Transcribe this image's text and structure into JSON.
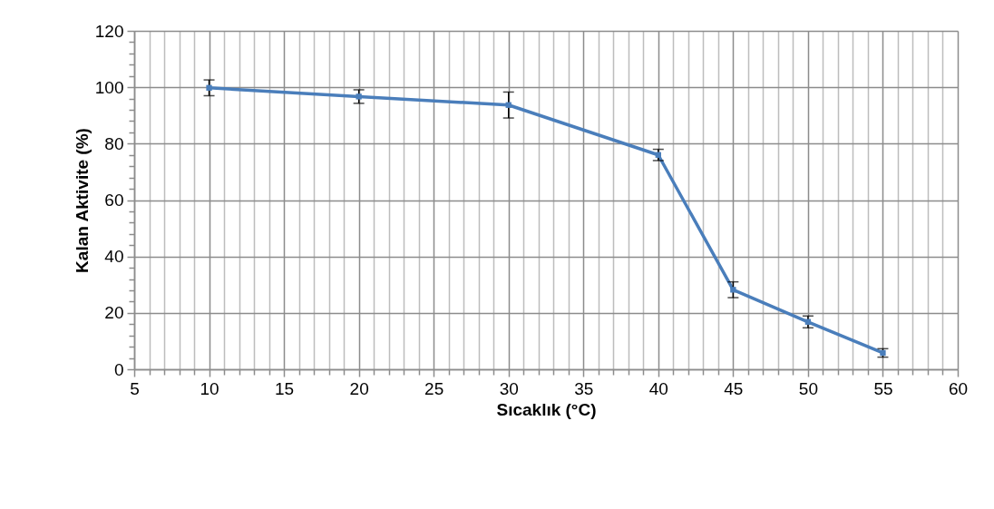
{
  "chart_data": {
    "type": "line",
    "xlabel": "Sıcaklık (°C)",
    "ylabel": "Kalan Aktivite (%)",
    "x": [
      10,
      20,
      30,
      40,
      45,
      50,
      55
    ],
    "series": [
      {
        "color": "#4a7ebb",
        "values": [
          99.8,
          96.7,
          93.7,
          76,
          28.2,
          16.8,
          5.8
        ],
        "errors": [
          2.8,
          2.4,
          4.6,
          2,
          2.8,
          2.1,
          1.5
        ]
      }
    ],
    "xlim": [
      5,
      60
    ],
    "xticks": [
      5,
      {
        "value": 6,
        "label": null
      },
      {
        "value": 7,
        "label": null
      },
      {
        "value": 8,
        "label": null
      },
      {
        "value": 9,
        "label": null
      },
      10,
      {
        "value": 11,
        "label": null
      },
      {
        "value": 12,
        "label": null
      },
      {
        "value": 13,
        "label": null
      },
      {
        "value": 14,
        "label": null
      },
      15,
      {
        "value": 16,
        "label": null
      },
      {
        "value": 17,
        "label": null
      },
      {
        "value": 18,
        "label": null
      },
      {
        "value": 19,
        "label": null
      },
      20,
      {
        "value": 21,
        "label": null
      },
      {
        "value": 22,
        "label": null
      },
      {
        "value": 23,
        "label": null
      },
      {
        "value": 24,
        "label": null
      },
      25,
      {
        "value": 26,
        "label": null
      },
      {
        "value": 27,
        "label": null
      },
      {
        "value": 28,
        "label": null
      },
      {
        "value": 29,
        "label": null
      },
      30,
      {
        "value": 31,
        "label": null
      },
      {
        "value": 32,
        "label": null
      },
      {
        "value": 33,
        "label": null
      },
      {
        "value": 34,
        "label": null
      },
      35,
      {
        "value": 36,
        "label": null
      },
      {
        "value": 37,
        "label": null
      },
      {
        "value": 38,
        "label": null
      },
      {
        "value": 39,
        "label": null
      },
      40,
      {
        "value": 41,
        "label": null
      },
      {
        "value": 42,
        "label": null
      },
      {
        "value": 43,
        "label": null
      },
      {
        "value": 44,
        "label": null
      },
      45,
      {
        "value": 46,
        "label": null
      },
      {
        "value": 47,
        "label": null
      },
      {
        "value": 48,
        "label": null
      },
      {
        "value": 49,
        "label": null
      },
      50,
      {
        "value": 51,
        "label": null
      },
      {
        "value": 52,
        "label": null
      },
      {
        "value": 53,
        "label": null
      },
      {
        "value": 54,
        "label": null
      },
      55,
      {
        "value": 56,
        "label": null
      },
      {
        "value": 57,
        "label": null
      },
      {
        "value": 58,
        "label": null
      },
      {
        "value": 59,
        "label": null
      },
      60
    ],
    "ylim": [
      0,
      120
    ],
    "yticks": [
      0,
      {
        "value": 4,
        "label": null
      },
      {
        "value": 8,
        "label": null
      },
      {
        "value": 12,
        "label": null
      },
      {
        "value": 16,
        "label": null
      },
      20,
      {
        "value": 24,
        "label": null
      },
      {
        "value": 28,
        "label": null
      },
      {
        "value": 32,
        "label": null
      },
      {
        "value": 36,
        "label": null
      },
      40,
      {
        "value": 44,
        "label": null
      },
      {
        "value": 48,
        "label": null
      },
      {
        "value": 52,
        "label": null
      },
      {
        "value": 56,
        "label": null
      },
      60,
      {
        "value": 64,
        "label": null
      },
      {
        "value": 68,
        "label": null
      },
      {
        "value": 72,
        "label": null
      },
      {
        "value": 76,
        "label": null
      },
      80,
      {
        "value": 84,
        "label": null
      },
      {
        "value": 88,
        "label": null
      },
      {
        "value": 92,
        "label": null
      },
      {
        "value": 96,
        "label": null
      },
      100,
      {
        "value": 104,
        "label": null
      },
      {
        "value": 108,
        "label": null
      },
      {
        "value": 112,
        "label": null
      },
      {
        "value": 116,
        "label": null
      },
      120
    ],
    "grid": "xy_minor_x",
    "marker": "square",
    "line_style": "solid"
  }
}
